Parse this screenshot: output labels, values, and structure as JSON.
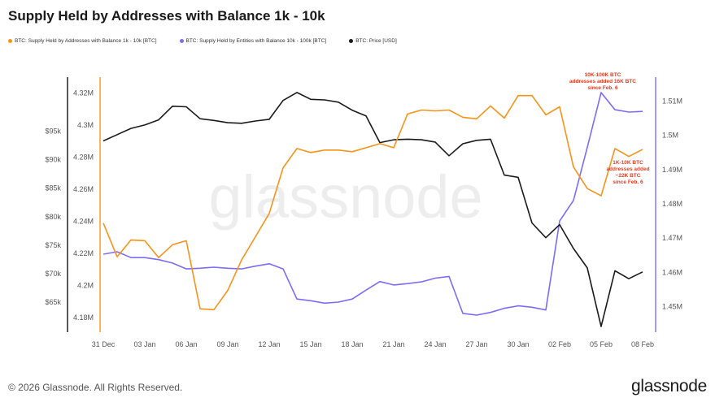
{
  "chart_data": {
    "type": "line",
    "title": "Supply Held by Addresses with Balance 1k - 10k",
    "watermark": "glassnode",
    "categories": [
      "31 Dec",
      "03 Jan",
      "06 Jan",
      "09 Jan",
      "12 Jan",
      "15 Jan",
      "18 Jan",
      "21 Jan",
      "24 Jan",
      "27 Jan",
      "30 Jan",
      "02 Feb",
      "05 Feb",
      "08 Feb"
    ],
    "x": [
      0,
      1,
      2,
      3,
      4,
      5,
      6,
      7,
      8,
      9,
      10,
      11,
      12,
      13,
      14,
      15,
      16,
      17,
      18,
      19,
      20,
      21,
      22,
      23,
      24,
      25,
      26,
      27,
      28,
      29,
      30,
      31,
      32,
      33,
      34,
      35,
      36,
      37,
      38,
      39
    ],
    "series": [
      {
        "name": "BTC: Supply Held by Addresses with Balance 1k - 10k [BTC]",
        "color": "#f7931a",
        "axis": "left",
        "values": [
          4.239,
          4.218,
          4.2285,
          4.228,
          4.2175,
          4.2255,
          4.228,
          4.1855,
          4.185,
          4.197,
          4.216,
          4.2305,
          4.245,
          4.2735,
          4.2855,
          4.283,
          4.2845,
          4.2845,
          4.2835,
          4.286,
          4.2885,
          4.286,
          4.307,
          4.3095,
          4.309,
          4.3095,
          4.305,
          4.304,
          4.312,
          4.3045,
          4.3185,
          4.3185,
          4.3065,
          4.3115,
          4.274,
          4.2605,
          4.256,
          4.2855,
          4.2805,
          4.285
        ]
      },
      {
        "name": "BTC: Supply Held by Entities with Balance 10k - 100k [BTC]",
        "color": "#7b6cf6",
        "axis": "right",
        "values": [
          1.4653,
          1.466,
          1.4643,
          1.4643,
          1.4637,
          1.4627,
          1.461,
          1.4612,
          1.4615,
          1.4612,
          1.461,
          1.4618,
          1.4625,
          1.461,
          1.4522,
          1.4517,
          1.451,
          1.4513,
          1.4522,
          1.4548,
          1.4573,
          1.4563,
          1.4567,
          1.4572,
          1.4583,
          1.4588,
          1.448,
          1.4475,
          1.4483,
          1.4495,
          1.4502,
          1.4498,
          1.449,
          1.475,
          1.481,
          1.4965,
          1.5125,
          1.5075,
          1.5068,
          1.507
        ]
      },
      {
        "name": "BTC: Price [USD]",
        "color": "#1a1a1a",
        "axis": "price",
        "values": [
          93300,
          94400,
          95500,
          96100,
          97000,
          99400,
          99300,
          97200,
          96900,
          96500,
          96400,
          96800,
          97100,
          100400,
          101800,
          100600,
          100500,
          100100,
          98700,
          97700,
          93000,
          93500,
          93600,
          93500,
          93100,
          90700,
          92800,
          93400,
          93600,
          87300,
          86900,
          78900,
          76300,
          78600,
          74400,
          71000,
          60700,
          70500,
          69100,
          70300
        ]
      }
    ],
    "axes": {
      "left": {
        "min": 4.172,
        "max": 4.33,
        "ticks": [
          4.18,
          4.2,
          4.22,
          4.24,
          4.26,
          4.28,
          4.3,
          4.32
        ],
        "tick_labels": [
          "4.18M",
          "4.2M",
          "4.22M",
          "4.24M",
          "4.26M",
          "4.28M",
          "4.3M",
          "4.32M"
        ]
      },
      "right": {
        "min": 1.443,
        "max": 1.517,
        "ticks": [
          1.45,
          1.46,
          1.47,
          1.48,
          1.49,
          1.5,
          1.51
        ],
        "tick_labels": [
          "1.45M",
          "1.46M",
          "1.47M",
          "1.48M",
          "1.49M",
          "1.5M",
          "1.51M"
        ]
      },
      "price": {
        "min": 60000,
        "max": 104500,
        "ticks": [
          65000,
          70000,
          75000,
          80000,
          85000,
          90000,
          95000
        ],
        "tick_labels": [
          "$65k",
          "$70k",
          "$75k",
          "$80k",
          "$85k",
          "$90k",
          "$95k"
        ]
      }
    },
    "annotations": [
      {
        "lines": [
          "10K-100K BTC",
          "addresses added 16K BTC",
          "since Feb. 6"
        ],
        "color": "#e03a1e",
        "anchor_index": 36
      },
      {
        "lines": [
          "1K-10K BTC",
          "addresses added",
          "~22K BTC",
          "since Feb. 6"
        ],
        "color": "#e03a1e",
        "anchor_index": 38
      }
    ]
  },
  "footer": {
    "copyright": "© 2026 Glassnode. All Rights Reserved.",
    "brand": "glassnode"
  }
}
